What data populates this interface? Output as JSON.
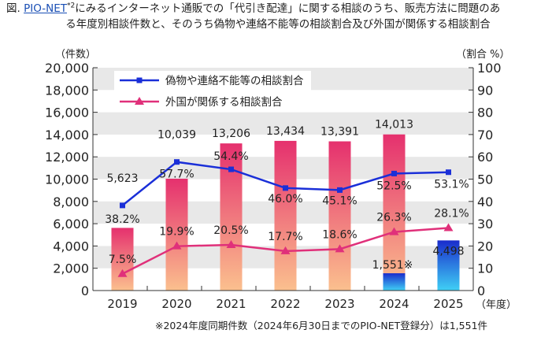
{
  "title": {
    "prefix": "図.",
    "link": "PIO-NET",
    "sup": "*2",
    "line1": "にみるインターネット通販での「代引き配達」に関する相談のうち、販売方法に問題のあ",
    "line2": "る年度別相談件数と、そのうち偽物や連絡不能等の相談割合及び外国が関係する相談割合"
  },
  "footnote": "※2024年度同期件数（2024年6月30日までのPIO-NET登録分）は1,551件",
  "chart_data": {
    "type": "bar+line",
    "categories": [
      "2019",
      "2020",
      "2021",
      "2022",
      "2023",
      "2024",
      "2025"
    ],
    "xlabel": "（年度）",
    "ylabel_left": "（件数）",
    "ylabel_right": "（割合 %）",
    "ylim_left": [
      0,
      20000
    ],
    "ylim_right": [
      0,
      100
    ],
    "yticks_left": [
      "0",
      "2,000",
      "4,000",
      "6,000",
      "8,000",
      "10,000",
      "12,000",
      "14,000",
      "16,000",
      "18,000",
      "20,000"
    ],
    "yticks_right": [
      "0",
      "10",
      "20",
      "30",
      "40",
      "50",
      "60",
      "70",
      "80",
      "90",
      "100"
    ],
    "bars": {
      "values": [
        5623,
        10039,
        13206,
        13434,
        13391,
        14013,
        null
      ],
      "labels": [
        "5,623",
        "10,039",
        "13,206",
        "13,434",
        "13,391",
        "14,013",
        ""
      ],
      "color_top": "#e5306e",
      "color_bottom": "#fbc08e"
    },
    "partial_bars": {
      "values": [
        null,
        null,
        null,
        null,
        null,
        1551,
        4498
      ],
      "labels": [
        "",
        "",
        "",
        "",
        "",
        "1,551※",
        "4,498"
      ],
      "color_top": "#1a2ccc",
      "color_bottom": "#3fd0f5"
    },
    "series": [
      {
        "name": "偽物や連絡不能等の相談割合",
        "values": [
          38.2,
          57.7,
          54.4,
          46.0,
          45.1,
          52.5,
          53.1
        ],
        "labels": [
          "38.2%",
          "57.7%",
          "54.4%",
          "46.0%",
          "45.1%",
          "52.5%",
          "53.1%"
        ],
        "color": "#1a2fd8",
        "marker": "square"
      },
      {
        "name": "外国が関係する相談割合",
        "values": [
          7.5,
          19.9,
          20.5,
          17.7,
          18.6,
          26.3,
          28.1
        ],
        "labels": [
          "7.5%",
          "19.9%",
          "20.5%",
          "17.7%",
          "18.6%",
          "26.3%",
          "28.1%"
        ],
        "color": "#e0307a",
        "marker": "triangle"
      }
    ],
    "grid": "alternating horizontal bands",
    "legend": "top-left inside"
  }
}
